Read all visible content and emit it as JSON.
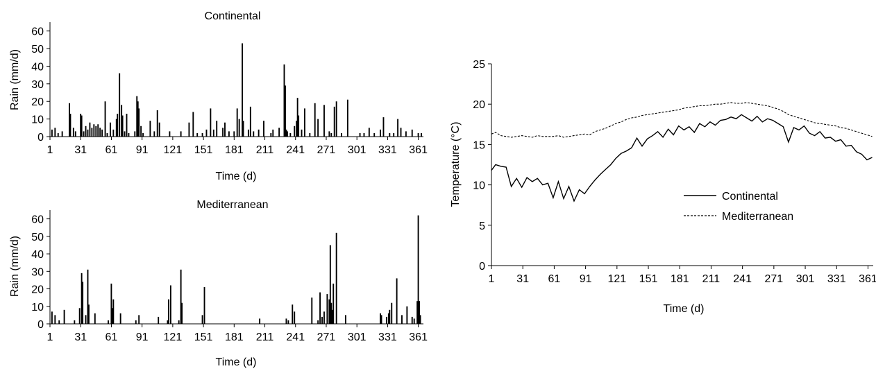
{
  "chart_data": [
    {
      "type": "bar",
      "title": "Continental",
      "xlabel": "Time (d)",
      "ylabel": "Rain (mm/d)",
      "ylim": [
        0,
        65
      ],
      "yticks": [
        0,
        10,
        20,
        30,
        40,
        50,
        60
      ],
      "xlim": [
        1,
        366
      ],
      "xticks": [
        1,
        31,
        61,
        91,
        121,
        151,
        181,
        211,
        241,
        271,
        301,
        331,
        361
      ],
      "grid": false,
      "x": [
        3,
        6,
        9,
        13,
        20,
        21,
        24,
        26,
        31,
        32,
        34,
        36,
        38,
        40,
        42,
        44,
        46,
        48,
        50,
        52,
        55,
        57,
        60,
        63,
        66,
        67,
        69,
        71,
        72,
        74,
        76,
        78,
        84,
        86,
        87,
        88,
        90,
        92,
        99,
        103,
        106,
        108,
        118,
        129,
        137,
        141,
        145,
        150,
        154,
        158,
        161,
        164,
        170,
        172,
        176,
        181,
        184,
        186,
        189,
        190,
        195,
        197,
        200,
        205,
        210,
        217,
        219,
        225,
        230,
        231,
        232,
        233,
        236,
        240,
        242,
        243,
        244,
        247,
        250,
        255,
        260,
        263,
        269,
        274,
        276,
        279,
        281,
        286,
        292,
        304,
        308,
        313,
        318,
        324,
        327,
        333,
        337,
        341,
        344,
        349,
        355,
        361,
        364
      ],
      "values": [
        4,
        5,
        2,
        3,
        19,
        13,
        5,
        3,
        13,
        12,
        3,
        6,
        4,
        8,
        5,
        7,
        6,
        7,
        5,
        4,
        20,
        2,
        8,
        4,
        10,
        13,
        36,
        18,
        12,
        3,
        13,
        2,
        3,
        23,
        20,
        16,
        6,
        2,
        9,
        3,
        15,
        8,
        3,
        3,
        8,
        14,
        2,
        2,
        4,
        16,
        4,
        9,
        5,
        8,
        3,
        3,
        16,
        10,
        53,
        9,
        4,
        17,
        3,
        4,
        9,
        2,
        4,
        5,
        41,
        29,
        4,
        3,
        2,
        6,
        9,
        22,
        12,
        4,
        16,
        2,
        19,
        10,
        18,
        3,
        2,
        17,
        20,
        2,
        21,
        2,
        2,
        5,
        2,
        4,
        11,
        2,
        2,
        10,
        5,
        3,
        4,
        2,
        2
      ]
    },
    {
      "type": "bar",
      "title": "Mediterranean",
      "xlabel": "Time (d)",
      "ylabel": "Rain (mm/d)",
      "ylim": [
        0,
        65
      ],
      "yticks": [
        0,
        10,
        20,
        30,
        40,
        50,
        60
      ],
      "xlim": [
        1,
        366
      ],
      "xticks": [
        1,
        31,
        61,
        91,
        121,
        151,
        181,
        211,
        241,
        271,
        301,
        331,
        361
      ],
      "grid": false,
      "x": [
        3,
        6,
        10,
        15,
        25,
        30,
        32,
        33,
        36,
        38,
        39,
        45,
        58,
        61,
        62,
        63,
        70,
        85,
        88,
        107,
        116,
        117,
        119,
        127,
        129,
        130,
        150,
        152,
        206,
        232,
        234,
        238,
        240,
        257,
        263,
        265,
        267,
        269,
        272,
        274,
        275,
        276,
        277,
        278,
        281,
        290,
        324,
        325,
        330,
        332,
        333,
        335,
        340,
        345,
        350,
        355,
        357,
        360,
        361,
        362,
        363
      ],
      "values": [
        7,
        5,
        2,
        8,
        2,
        9,
        29,
        24,
        5,
        31,
        11,
        6,
        2,
        23,
        9,
        14,
        6,
        2,
        5,
        4,
        2,
        14,
        22,
        2,
        31,
        12,
        5,
        21,
        3,
        3,
        2,
        11,
        7,
        15,
        2,
        18,
        4,
        7,
        17,
        14,
        45,
        12,
        8,
        23,
        52,
        5,
        6,
        5,
        4,
        6,
        8,
        12,
        26,
        5,
        10,
        4,
        3,
        13,
        62,
        13,
        5
      ]
    },
    {
      "type": "line",
      "title": "",
      "xlabel": "Time (d)",
      "ylabel": "Temperature (°C)",
      "ylim": [
        0,
        25
      ],
      "yticks": [
        0,
        5,
        10,
        15,
        20,
        25
      ],
      "xlim": [
        1,
        366
      ],
      "xticks": [
        1,
        31,
        61,
        91,
        121,
        151,
        181,
        211,
        241,
        271,
        301,
        331,
        361
      ],
      "grid": false,
      "legend": "right",
      "series": [
        {
          "name": "Continental",
          "style": "solid",
          "x": [
            1,
            5,
            10,
            15,
            20,
            25,
            30,
            35,
            40,
            45,
            50,
            55,
            60,
            65,
            70,
            75,
            80,
            85,
            90,
            95,
            100,
            105,
            110,
            115,
            120,
            125,
            130,
            135,
            140,
            145,
            150,
            155,
            160,
            165,
            170,
            175,
            180,
            185,
            190,
            195,
            200,
            205,
            210,
            215,
            220,
            225,
            230,
            235,
            240,
            245,
            250,
            255,
            260,
            265,
            270,
            275,
            280,
            285,
            290,
            295,
            300,
            305,
            310,
            315,
            320,
            325,
            330,
            335,
            340,
            345,
            350,
            355,
            360,
            365
          ],
          "values": [
            11.8,
            12.5,
            12.3,
            12.2,
            9.8,
            10.8,
            9.7,
            10.9,
            10.4,
            10.8,
            10.0,
            10.2,
            8.4,
            10.4,
            8.3,
            9.8,
            8.0,
            9.4,
            8.9,
            9.8,
            10.6,
            11.3,
            11.9,
            12.5,
            13.3,
            13.9,
            14.2,
            14.6,
            15.8,
            14.8,
            15.7,
            16.1,
            16.6,
            15.9,
            16.9,
            16.2,
            17.3,
            16.8,
            17.2,
            16.5,
            17.6,
            17.2,
            17.8,
            17.4,
            18.0,
            18.1,
            18.4,
            18.2,
            18.7,
            18.3,
            17.9,
            18.5,
            17.8,
            18.2,
            18.0,
            17.6,
            17.2,
            15.3,
            17.1,
            16.8,
            17.3,
            16.4,
            16.1,
            16.6,
            15.8,
            15.9,
            15.4,
            15.6,
            14.8,
            14.9,
            14.1,
            13.8,
            13.1,
            13.4
          ]
        },
        {
          "name": "Mediterranean",
          "style": "dashed",
          "x": [
            1,
            5,
            10,
            15,
            20,
            25,
            30,
            35,
            40,
            45,
            50,
            55,
            60,
            65,
            70,
            75,
            80,
            85,
            90,
            95,
            100,
            105,
            110,
            115,
            120,
            125,
            130,
            135,
            140,
            145,
            150,
            155,
            160,
            165,
            170,
            175,
            180,
            185,
            190,
            195,
            200,
            205,
            210,
            215,
            220,
            225,
            230,
            235,
            240,
            245,
            250,
            255,
            260,
            265,
            270,
            275,
            280,
            285,
            290,
            295,
            300,
            305,
            310,
            315,
            320,
            325,
            330,
            335,
            340,
            345,
            350,
            355,
            360,
            365
          ],
          "values": [
            16.3,
            16.5,
            16.1,
            16.0,
            15.9,
            16.0,
            16.1,
            16.0,
            15.9,
            16.1,
            16.0,
            16.0,
            16.0,
            16.1,
            15.9,
            16.0,
            16.1,
            16.2,
            16.3,
            16.2,
            16.6,
            16.8,
            17.0,
            17.3,
            17.6,
            17.8,
            18.1,
            18.3,
            18.4,
            18.6,
            18.7,
            18.8,
            18.9,
            19.0,
            19.1,
            19.2,
            19.3,
            19.5,
            19.6,
            19.7,
            19.8,
            19.8,
            19.9,
            20.0,
            20.0,
            20.1,
            20.2,
            20.1,
            20.1,
            20.2,
            20.1,
            20.0,
            19.9,
            19.8,
            19.6,
            19.4,
            19.1,
            18.7,
            18.5,
            18.3,
            18.1,
            17.9,
            17.7,
            17.6,
            17.5,
            17.4,
            17.3,
            17.1,
            17.0,
            16.8,
            16.6,
            16.4,
            16.2,
            16.0
          ]
        }
      ]
    }
  ]
}
